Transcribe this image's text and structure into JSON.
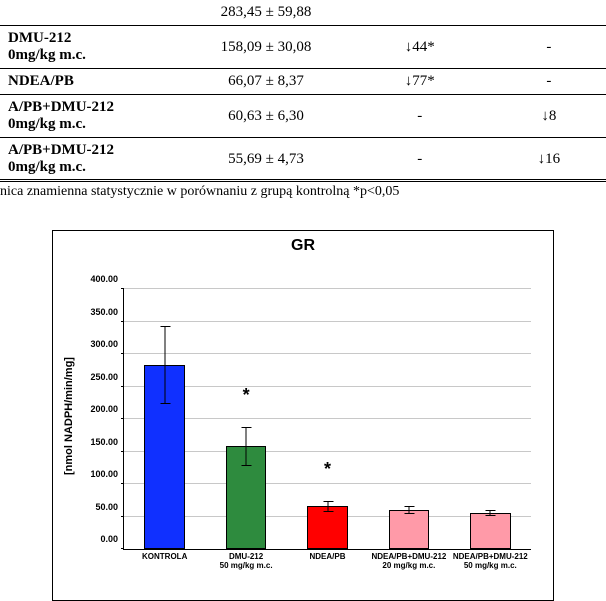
{
  "table": {
    "rows": [
      {
        "label_main": "",
        "label_sub": "",
        "value": "283,45 ± 59,88",
        "delta_vs_control": "",
        "delta_vs_ndea": "",
        "top_sep": false
      },
      {
        "label_main": " DMU-212",
        "label_sub": "0mg/kg m.c.",
        "value": "158,09 ± 30,08",
        "delta_vs_control": "↓44*",
        "delta_vs_ndea": "-",
        "top_sep": true
      },
      {
        "label_main": " NDEA/PB",
        "label_sub": "",
        "value": "66,07 ± 8,37",
        "delta_vs_control": "↓77*",
        "delta_vs_ndea": "-",
        "top_sep": true
      },
      {
        "label_main": "A/PB+DMU-212",
        "label_sub": "0mg/kg m.c.",
        "value": "60,63 ± 6,30",
        "delta_vs_control": "-",
        "delta_vs_ndea": "↓8",
        "top_sep": true
      },
      {
        "label_main": "A/PB+DMU-212",
        "label_sub": "0mg/kg m.c.",
        "value": "55,69 ± 4,73",
        "delta_vs_control": "-",
        "delta_vs_ndea": "↓16",
        "top_sep": true
      }
    ],
    "footnote": "nica znamienna statystycznie w porównaniu z grupą kontrolną *p<0,05"
  },
  "chart": {
    "type": "bar",
    "title": "GR",
    "ylabel": "[nmol NADPH/min/mg]",
    "ymin": 0,
    "ymax": 400,
    "ytick_step": 50,
    "ytick_labels": [
      "0.00",
      "50.00",
      "100.00",
      "150.00",
      "200.00",
      "250.00",
      "300.00",
      "350.00",
      "400.00"
    ],
    "grid_color": "#c8c8c8",
    "background_color": "#ffffff",
    "bar_width_pct": 10,
    "bars": [
      {
        "label_line1": "KONTROLA",
        "label_line2": "",
        "value": 283.45,
        "err": 59.88,
        "color": "#1030ff",
        "star": false
      },
      {
        "label_line1": "DMU-212",
        "label_line2": "50 mg/kg m.c.",
        "value": 158.09,
        "err": 30.08,
        "color": "#2e8b3e",
        "star": true
      },
      {
        "label_line1": "NDEA/PB",
        "label_line2": "",
        "value": 66.07,
        "err": 8.37,
        "color": "#ff0000",
        "star": true
      },
      {
        "label_line1": "NDEA/PB+DMU-212",
        "label_line2": "20 mg/kg m.c.",
        "value": 60.63,
        "err": 6.3,
        "color": "#ff9aa8",
        "star": false
      },
      {
        "label_line1": "NDEA/PB+DMU-212",
        "label_line2": "50 mg/kg m.c.",
        "value": 55.69,
        "err": 4.73,
        "color": "#ff9aa8",
        "star": false
      }
    ]
  }
}
